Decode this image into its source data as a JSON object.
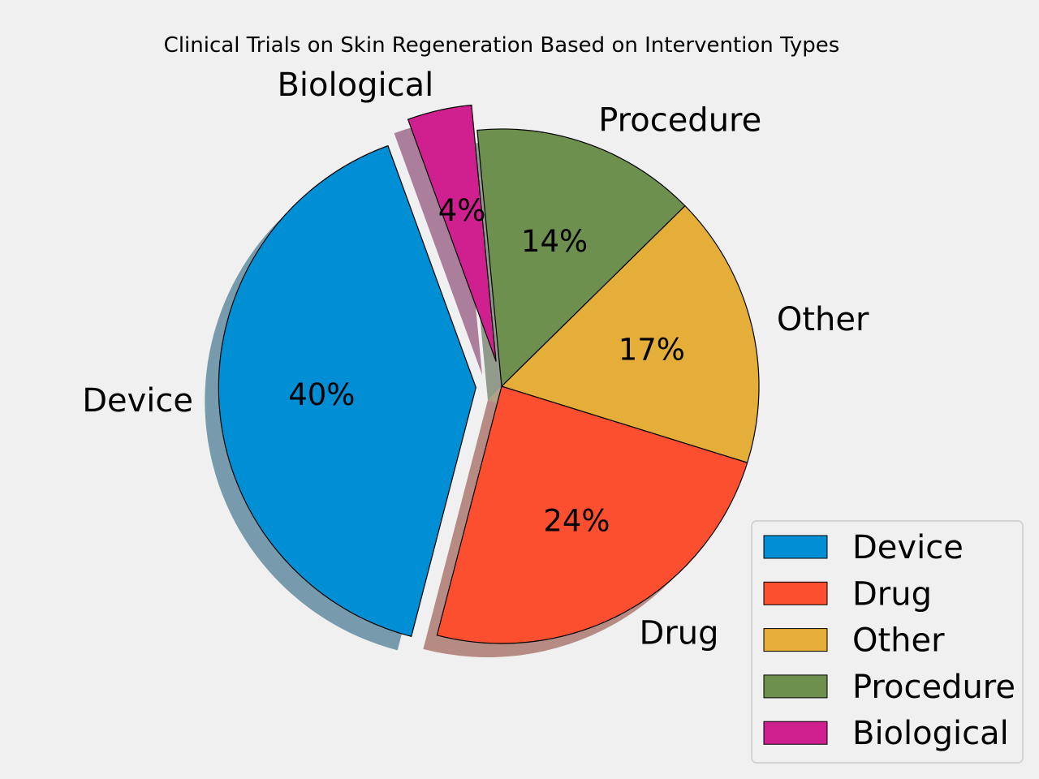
{
  "chart_data": {
    "type": "pie",
    "title": "Clinical Trials on Skin Regeneration Based on Intervention Types",
    "categories": [
      "Device",
      "Drug",
      "Other",
      "Procedure",
      "Biological"
    ],
    "values": [
      40,
      24,
      17,
      14,
      4
    ],
    "percent_labels": [
      "40%",
      "24%",
      "17%",
      "14%",
      "4%"
    ],
    "exploded": [
      "Device",
      "Biological"
    ],
    "shadow": true,
    "legend": {
      "entries": [
        "Device",
        "Drug",
        "Other",
        "Procedure",
        "Biological"
      ],
      "placement": "lower-right"
    },
    "colors": [
      "#008fd5",
      "#fc4f30",
      "#e5ae38",
      "#6d904f",
      "#d0208f"
    ]
  }
}
